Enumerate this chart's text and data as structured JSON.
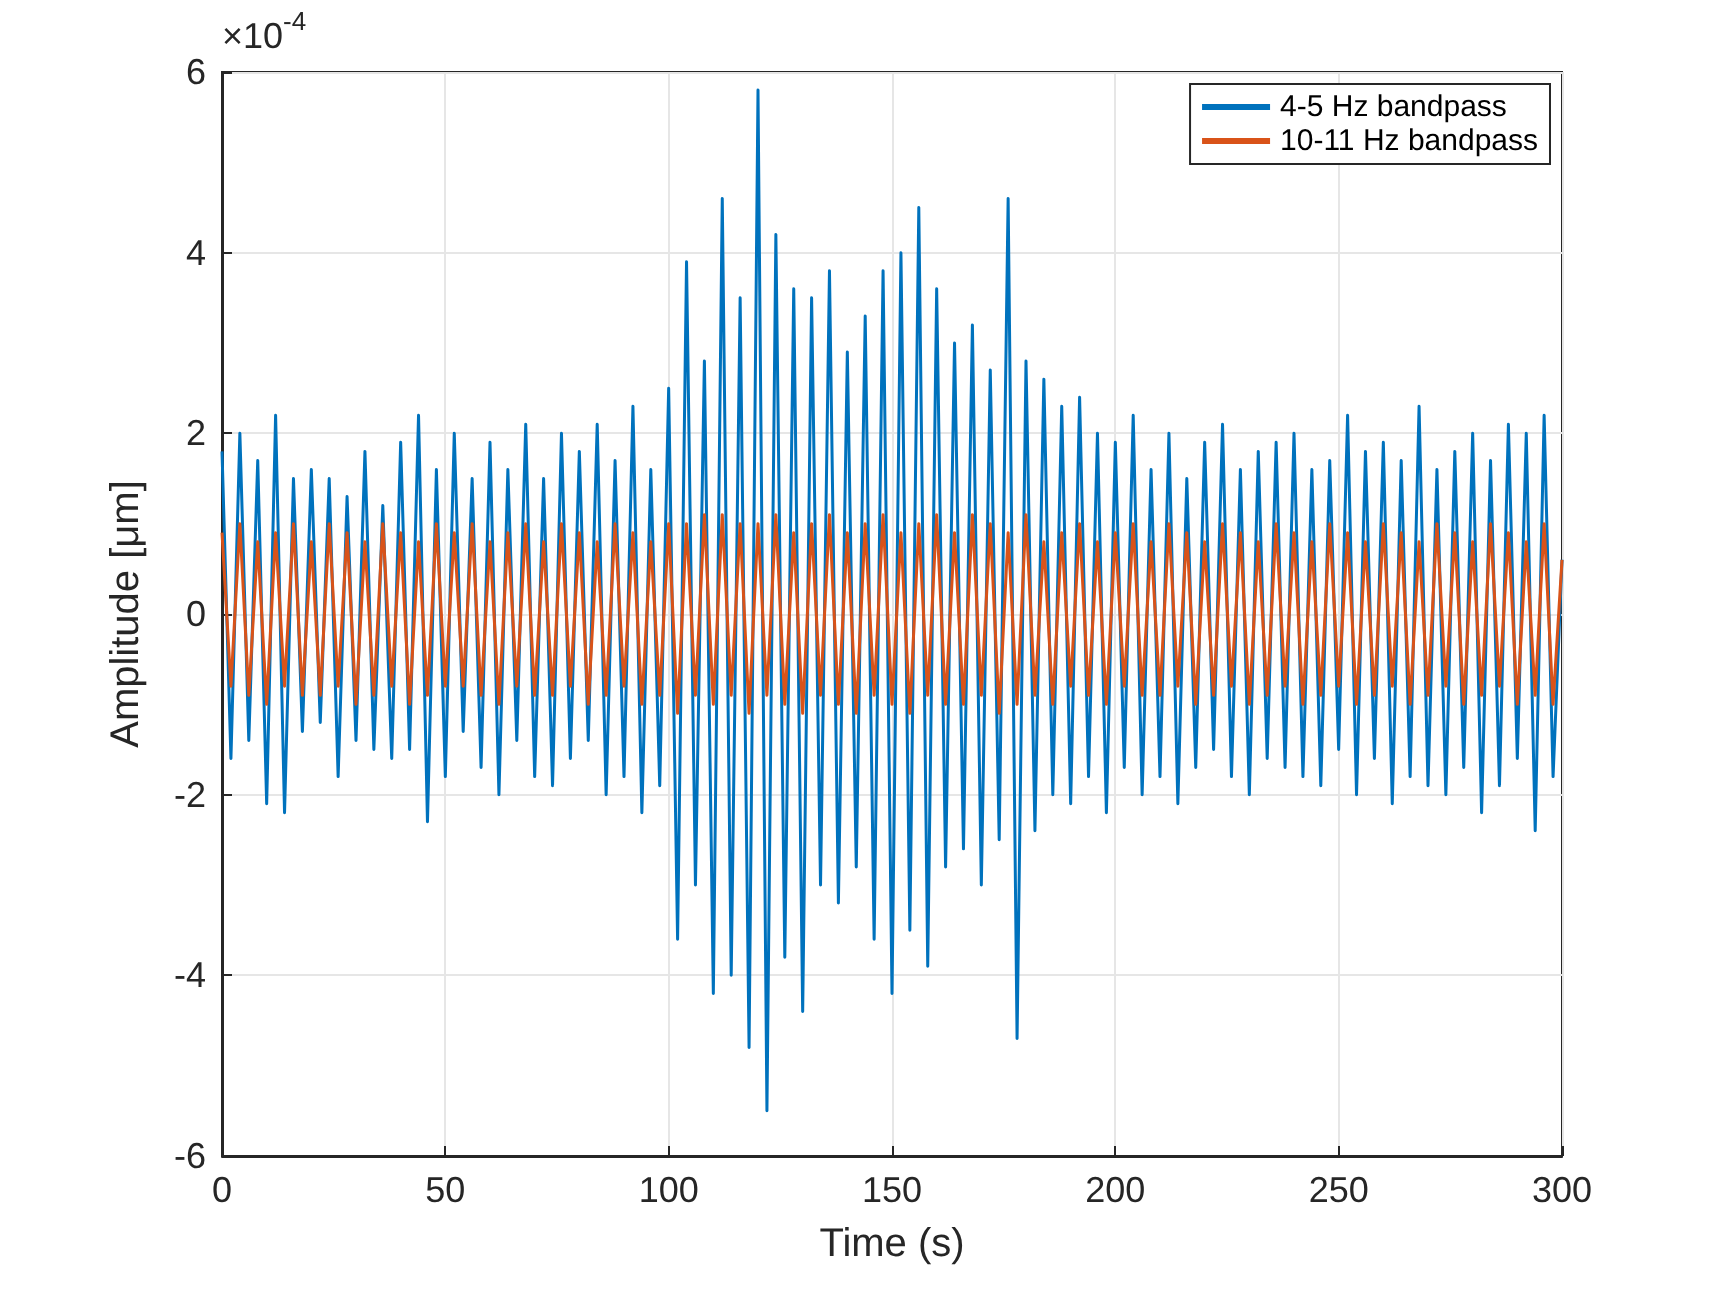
{
  "chart_data": {
    "type": "line",
    "xlabel": "Time (s)",
    "ylabel": "Amplitude [μm]",
    "annotations": [
      "×10$^{-4}$"
    ],
    "x": [
      0,
      2,
      4,
      6,
      8,
      10,
      12,
      14,
      16,
      18,
      20,
      22,
      24,
      26,
      28,
      30,
      32,
      34,
      36,
      38,
      40,
      42,
      44,
      46,
      48,
      50,
      52,
      54,
      56,
      58,
      60,
      62,
      64,
      66,
      68,
      70,
      72,
      74,
      76,
      78,
      80,
      82,
      84,
      86,
      88,
      90,
      92,
      94,
      96,
      98,
      100,
      102,
      104,
      106,
      108,
      110,
      112,
      114,
      116,
      118,
      120,
      122,
      124,
      126,
      128,
      130,
      132,
      134,
      136,
      138,
      140,
      142,
      144,
      146,
      148,
      150,
      152,
      154,
      156,
      158,
      160,
      162,
      164,
      166,
      168,
      170,
      172,
      174,
      176,
      178,
      180,
      182,
      184,
      186,
      188,
      190,
      192,
      194,
      196,
      198,
      200,
      202,
      204,
      206,
      208,
      210,
      212,
      214,
      216,
      218,
      220,
      222,
      224,
      226,
      228,
      230,
      232,
      234,
      236,
      238,
      240,
      242,
      244,
      246,
      248,
      250,
      252,
      254,
      256,
      258,
      260,
      262,
      264,
      266,
      268,
      270,
      272,
      274,
      276,
      278,
      280,
      282,
      284,
      286,
      288,
      290,
      292,
      294,
      296,
      298,
      300
    ],
    "series": [
      {
        "name": "4-5 Hz bandpass",
        "color": "#0072bd",
        "values": [
          1.8,
          -1.6,
          2.0,
          -1.4,
          1.7,
          -2.1,
          2.2,
          -2.2,
          1.5,
          -1.3,
          1.6,
          -1.2,
          1.5,
          -1.8,
          1.3,
          -1.4,
          1.8,
          -1.5,
          1.2,
          -1.6,
          1.9,
          -1.5,
          2.2,
          -2.3,
          1.6,
          -1.8,
          2.0,
          -1.3,
          1.5,
          -1.7,
          1.9,
          -2.0,
          1.6,
          -1.4,
          2.1,
          -1.8,
          1.5,
          -1.9,
          2.0,
          -1.6,
          1.8,
          -1.4,
          2.1,
          -2.0,
          1.7,
          -1.8,
          2.3,
          -2.2,
          1.6,
          -1.9,
          2.5,
          -3.6,
          3.9,
          -3.0,
          2.8,
          -4.2,
          4.6,
          -4.0,
          3.5,
          -4.8,
          5.8,
          -5.5,
          4.2,
          -3.8,
          3.6,
          -4.4,
          3.5,
          -3.0,
          3.8,
          -3.2,
          2.9,
          -2.8,
          3.3,
          -3.6,
          3.8,
          -4.2,
          4.0,
          -3.5,
          4.5,
          -3.9,
          3.6,
          -2.8,
          3.0,
          -2.6,
          3.2,
          -3.0,
          2.7,
          -2.5,
          4.6,
          -4.7,
          2.8,
          -2.4,
          2.6,
          -2.0,
          2.3,
          -2.1,
          2.4,
          -1.8,
          2.0,
          -2.2,
          1.9,
          -1.7,
          2.2,
          -2.0,
          1.6,
          -1.8,
          2.0,
          -2.1,
          1.5,
          -1.7,
          1.9,
          -1.5,
          2.1,
          -1.8,
          1.6,
          -2.0,
          1.8,
          -1.6,
          1.9,
          -1.7,
          2.0,
          -1.8,
          1.6,
          -1.9,
          1.7,
          -1.5,
          2.2,
          -2.0,
          1.8,
          -1.6,
          1.9,
          -2.1,
          1.7,
          -1.8,
          2.3,
          -1.9,
          1.6,
          -2.0,
          1.8,
          -1.7,
          2.0,
          -2.2,
          1.7,
          -1.9,
          2.1,
          -1.6,
          2.0,
          -2.4,
          2.2,
          -1.8,
          0.6
        ]
      },
      {
        "name": "10-11 Hz bandpass",
        "color": "#d95319",
        "values": [
          0.9,
          -0.8,
          1.0,
          -0.9,
          0.8,
          -1.0,
          0.9,
          -0.8,
          1.0,
          -0.9,
          0.8,
          -0.9,
          1.0,
          -0.8,
          0.9,
          -1.0,
          0.8,
          -0.9,
          1.0,
          -0.8,
          0.9,
          -1.0,
          0.8,
          -0.9,
          1.0,
          -0.8,
          0.9,
          -0.8,
          1.0,
          -0.9,
          0.8,
          -1.0,
          0.9,
          -0.8,
          1.0,
          -0.9,
          0.8,
          -0.9,
          1.0,
          -0.8,
          0.9,
          -1.0,
          0.8,
          -0.9,
          1.0,
          -0.8,
          0.9,
          -1.0,
          0.8,
          -0.9,
          1.0,
          -1.1,
          1.0,
          -0.9,
          1.1,
          -1.0,
          1.1,
          -0.9,
          1.0,
          -1.1,
          1.0,
          -0.9,
          1.1,
          -1.0,
          0.9,
          -1.1,
          1.0,
          -0.9,
          1.1,
          -1.0,
          0.9,
          -1.1,
          1.0,
          -0.9,
          1.1,
          -1.0,
          0.9,
          -1.1,
          1.0,
          -0.9,
          1.1,
          -1.0,
          0.9,
          -1.0,
          1.1,
          -0.9,
          1.0,
          -1.1,
          0.9,
          -1.0,
          1.1,
          -0.9,
          0.8,
          -1.0,
          0.9,
          -0.8,
          1.0,
          -0.9,
          0.8,
          -1.0,
          0.9,
          -0.8,
          1.0,
          -0.9,
          0.8,
          -0.9,
          1.0,
          -0.8,
          0.9,
          -1.0,
          0.8,
          -0.9,
          1.0,
          -0.8,
          0.9,
          -1.0,
          0.8,
          -0.9,
          1.0,
          -0.8,
          0.9,
          -1.0,
          0.8,
          -0.9,
          1.0,
          -0.8,
          0.9,
          -1.0,
          0.8,
          -0.9,
          1.0,
          -0.8,
          0.9,
          -1.0,
          0.8,
          -0.9,
          1.0,
          -0.8,
          0.9,
          -1.0,
          0.8,
          -0.9,
          1.0,
          -0.8,
          0.9,
          -1.0,
          0.8,
          -0.9,
          1.0,
          -1.0,
          0.6
        ]
      }
    ],
    "xlim": [
      0,
      300
    ],
    "xticks": [
      0,
      50,
      100,
      150,
      200,
      250,
      300
    ],
    "ylim": [
      -6,
      6
    ],
    "yticks": [
      -6,
      -4,
      -2,
      0,
      2,
      4,
      6
    ],
    "grid": true,
    "legend": "top right",
    "marker": "none",
    "line_style": "solid"
  }
}
